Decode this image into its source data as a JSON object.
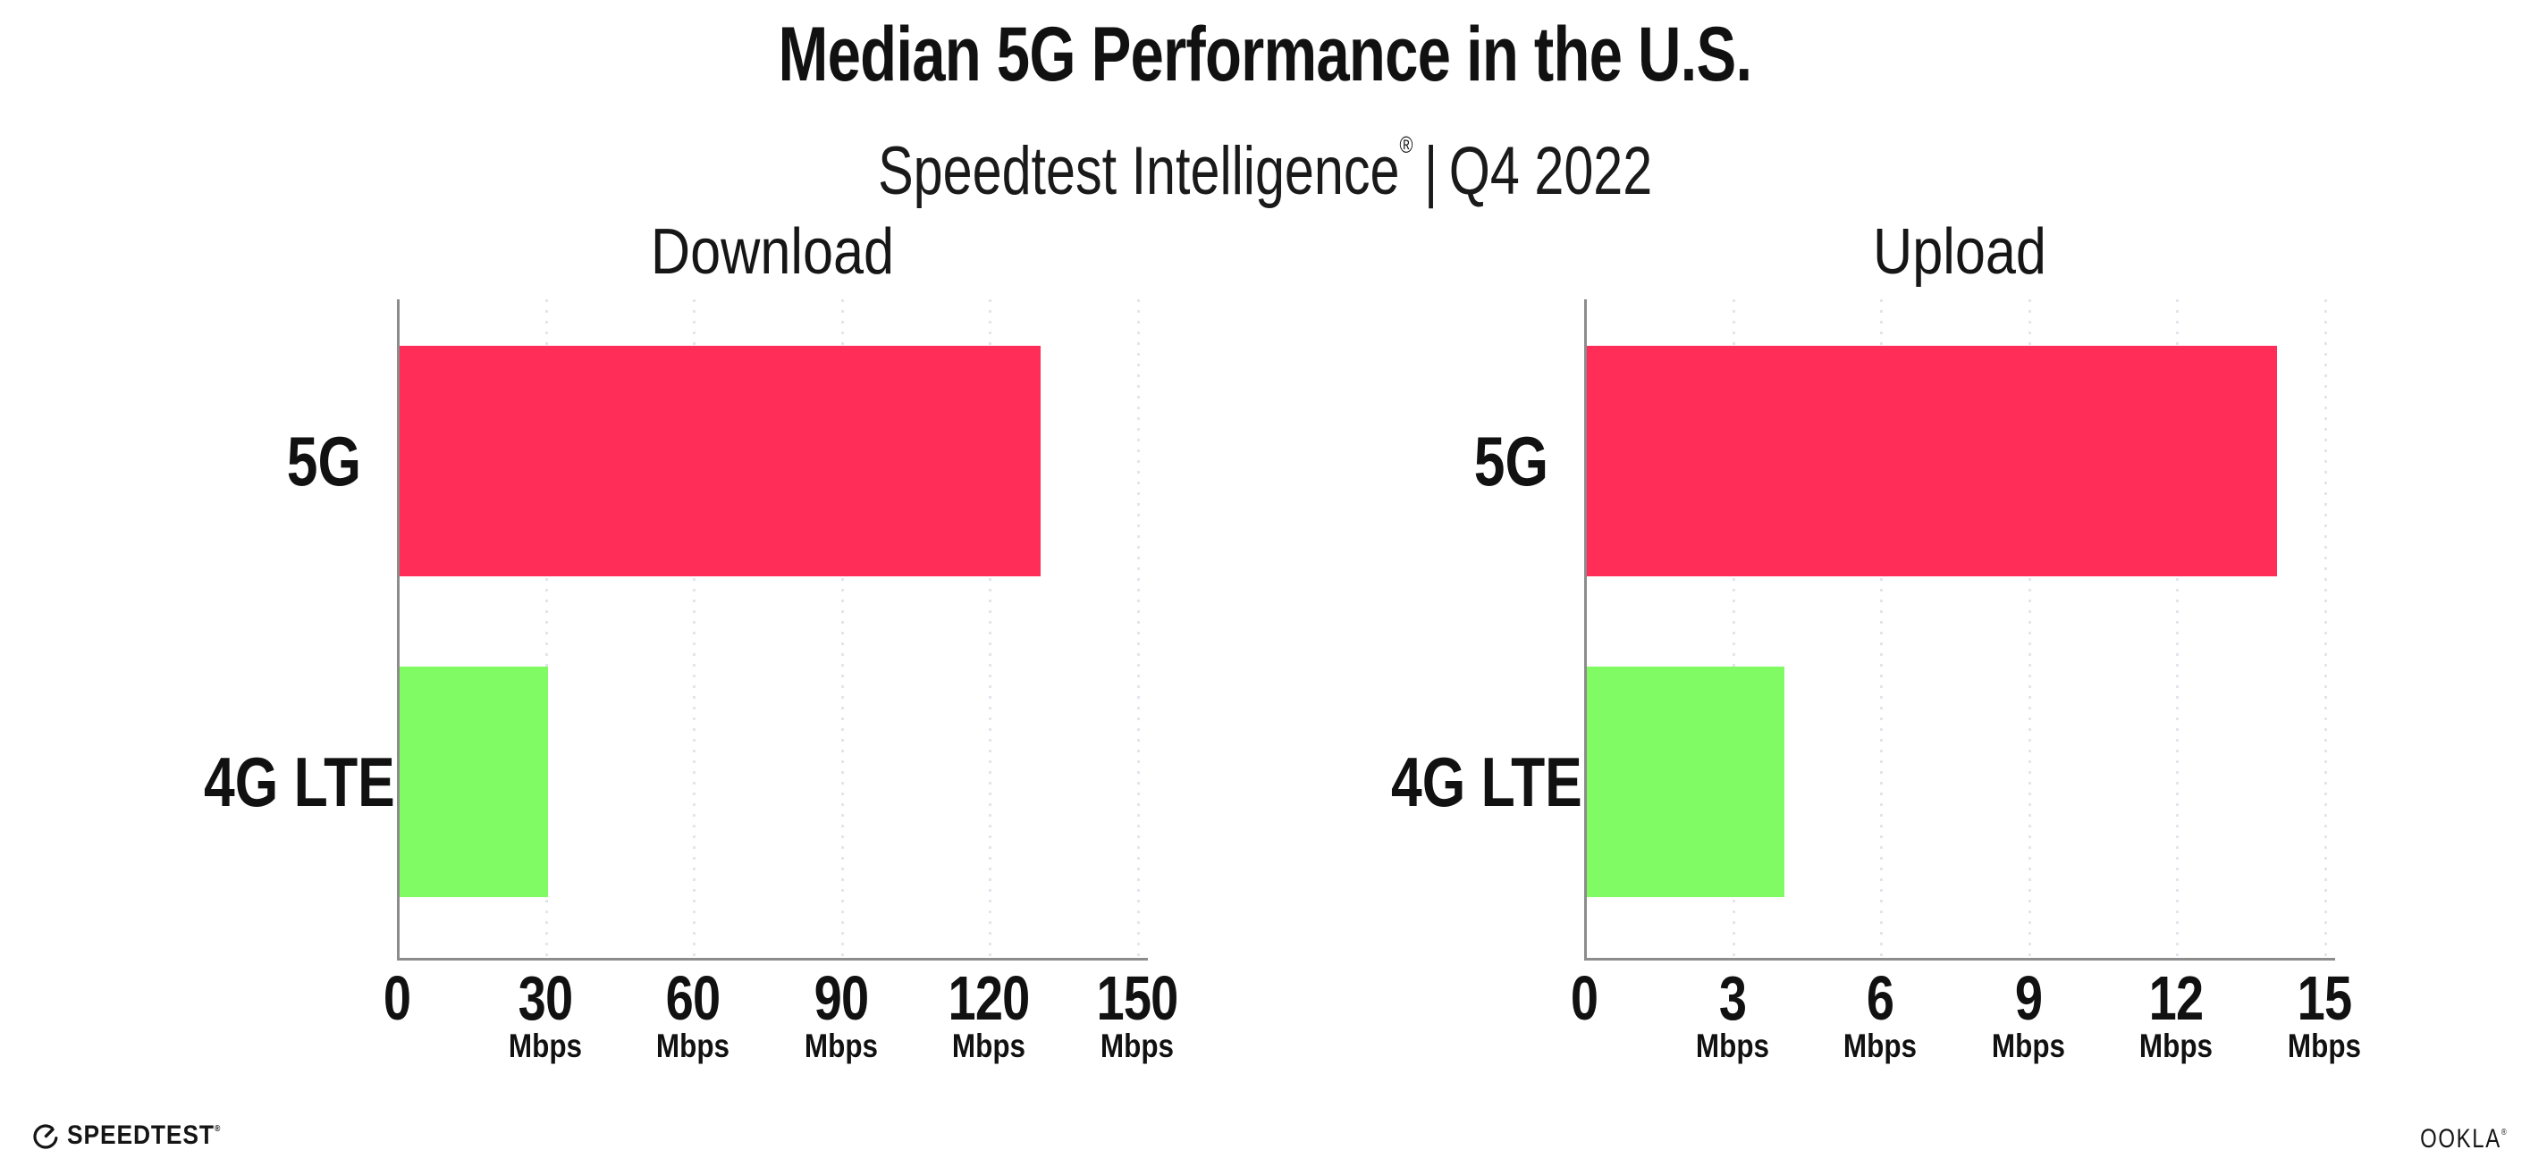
{
  "header": {
    "title": "Median 5G Performance in the U.S.",
    "subtitle": {
      "brand": "Speedtest Intelligence",
      "registered": "®",
      "separator": "|",
      "period": "Q4 2022"
    }
  },
  "footer": {
    "speedtest_wordmark": "SPEEDTEST",
    "speedtest_registered": "®",
    "ookla_wordmark": "OOKLA",
    "ookla_registered": "®"
  },
  "colors": {
    "bar_5g": "#FF2D57",
    "bar_4g_lte": "#80FB63",
    "axis": "#8C8C8C",
    "gridline": "#E4E4EE",
    "text": "#111111"
  },
  "chart_data": [
    {
      "type": "bar",
      "orientation": "horizontal",
      "title": "Download",
      "categories": [
        "5G",
        "4G LTE"
      ],
      "values": [
        130,
        30
      ],
      "unit": "Mbps",
      "xlim": [
        0,
        150
      ],
      "xticks": [
        0,
        30,
        60,
        90,
        120,
        150
      ],
      "xtick_unit": "Mbps",
      "bar_colors": [
        "#FF2D57",
        "#80FB63"
      ],
      "grid": "dotted vertical gridlines at each tick",
      "legend": "none"
    },
    {
      "type": "bar",
      "orientation": "horizontal",
      "title": "Upload",
      "categories": [
        "5G",
        "4G LTE"
      ],
      "values": [
        14,
        4
      ],
      "unit": "Mbps",
      "xlim": [
        0,
        15
      ],
      "xticks": [
        0,
        3,
        6,
        9,
        12,
        15
      ],
      "xtick_unit": "Mbps",
      "bar_colors": [
        "#FF2D57",
        "#80FB63"
      ],
      "grid": "dotted vertical gridlines at each tick",
      "legend": "none"
    }
  ]
}
